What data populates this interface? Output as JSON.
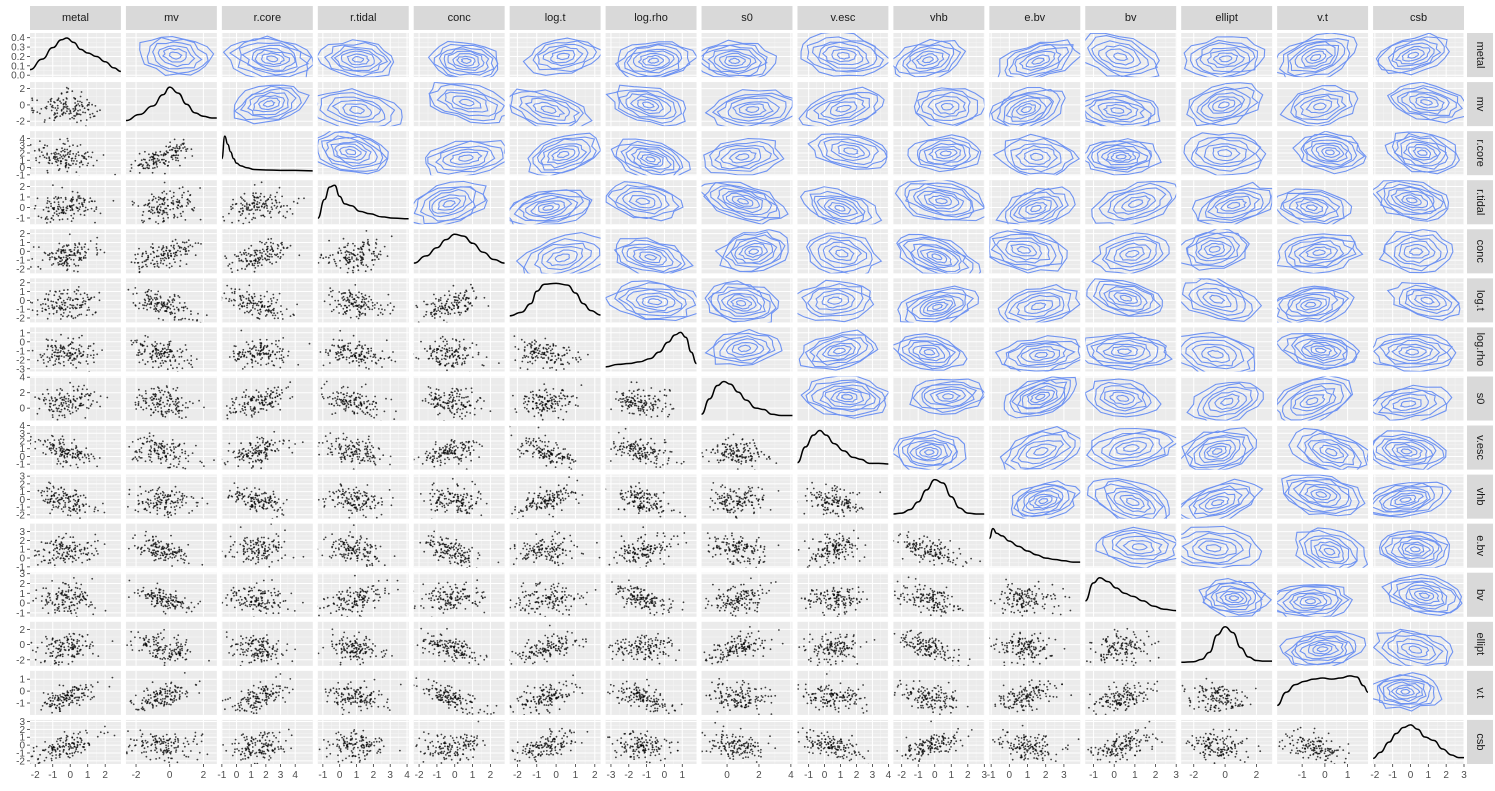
{
  "chart_data": {
    "type": "scatter",
    "variant": "scatterplot-matrix",
    "upper_panels": "2d-density-contour",
    "diagonal_panels": "density-curve",
    "lower_panels": "scatter",
    "grid": true,
    "panel_background": "#ebebeb",
    "strip_background": "#d9d9d9",
    "contour_color": "#6f93f2",
    "point_color": "#000000",
    "density_line_color": "#000000",
    "variables": [
      "metal",
      "mv",
      "r.core",
      "r.tidal",
      "conc",
      "log.t",
      "log.rho",
      "s0",
      "v.esc",
      "vhb",
      "e.bv",
      "bv",
      "ellipt",
      "v.t",
      "csb"
    ],
    "x_axes": [
      {
        "range": [
          -2.3,
          2.9
        ],
        "ticks": [
          "-2",
          "-1",
          "0",
          "1",
          "2"
        ]
      },
      {
        "range": [
          -2.6,
          2.8
        ],
        "ticks": [
          "-2",
          "0",
          "2"
        ]
      },
      {
        "range": [
          -1.0,
          5.2
        ],
        "ticks": [
          "-1",
          "0",
          "1",
          "2",
          "3",
          "4"
        ]
      },
      {
        "range": [
          -1.3,
          4.1
        ],
        "ticks": [
          "-1",
          "0",
          "1",
          "2",
          "3",
          "4"
        ]
      },
      {
        "range": [
          -2.3,
          2.8
        ],
        "ticks": [
          "-2",
          "-1",
          "0",
          "1",
          "2"
        ]
      },
      {
        "range": [
          -2.4,
          2.3
        ],
        "ticks": [
          "-2",
          "-1",
          "0",
          "1",
          "2"
        ]
      },
      {
        "range": [
          -3.3,
          1.8
        ],
        "ticks": [
          "-3",
          "-2",
          "-1",
          "0",
          "1"
        ]
      },
      {
        "range": [
          -1.6,
          4.1
        ],
        "ticks": [
          "0",
          "2",
          "4"
        ]
      },
      {
        "range": [
          -1.7,
          4.0
        ],
        "ticks": [
          "-1",
          "0",
          "1",
          "2",
          "3",
          "4"
        ]
      },
      {
        "range": [
          -2.5,
          3.0
        ],
        "ticks": [
          "-2",
          "-1",
          "0",
          "1",
          "2",
          "3"
        ]
      },
      {
        "range": [
          -1.1,
          3.9
        ],
        "ticks": [
          "-1",
          "0",
          "1",
          "2",
          "3"
        ]
      },
      {
        "range": [
          -1.4,
          3.0
        ],
        "ticks": [
          "-1",
          "0",
          "1",
          "2",
          "3"
        ]
      },
      {
        "range": [
          -2.8,
          3.0
        ],
        "ticks": [
          "-2",
          "0",
          "2"
        ]
      },
      {
        "range": [
          -2.1,
          1.9
        ],
        "ticks": [
          "-1",
          "0",
          "1"
        ]
      },
      {
        "range": [
          -2.1,
          3.0
        ],
        "ticks": [
          "-2",
          "-1",
          "0",
          "1",
          "2",
          "3"
        ]
      }
    ],
    "y_axes": [
      {
        "range": [
          -0.02,
          0.45
        ],
        "ticks": [
          "0.0",
          "0.1",
          "0.2",
          "0.3",
          "0.4"
        ]
      },
      {
        "range": [
          -2.6,
          2.8
        ],
        "ticks": [
          "-2",
          "0",
          "2"
        ]
      },
      {
        "range": [
          -1.05,
          5.0
        ],
        "ticks": [
          "-1",
          "0",
          "1",
          "2",
          "3",
          "4"
        ]
      },
      {
        "range": [
          -1.6,
          2.6
        ],
        "ticks": [
          "-1",
          "0",
          "1",
          "2"
        ]
      },
      {
        "range": [
          -2.5,
          2.5
        ],
        "ticks": [
          "-2",
          "-1",
          "0",
          "1",
          "2"
        ]
      },
      {
        "range": [
          -2.5,
          2.5
        ],
        "ticks": [
          "-2",
          "-1",
          "0",
          "1",
          "2"
        ]
      },
      {
        "range": [
          -3.3,
          1.6
        ],
        "ticks": [
          "-3",
          "-2",
          "-1",
          "0",
          "1"
        ]
      },
      {
        "range": [
          -1.6,
          4.1
        ],
        "ticks": [
          "0",
          "2",
          "4"
        ]
      },
      {
        "range": [
          -1.7,
          4.0
        ],
        "ticks": [
          "-1",
          "0",
          "1",
          "2",
          "3",
          "4"
        ]
      },
      {
        "range": [
          -2.5,
          3.2
        ],
        "ticks": [
          "-2",
          "-1",
          "0",
          "1",
          "2",
          "3"
        ]
      },
      {
        "range": [
          -1.1,
          3.9
        ],
        "ticks": [
          "-1",
          "0",
          "1",
          "2",
          "3"
        ]
      },
      {
        "range": [
          -1.4,
          3.1
        ],
        "ticks": [
          "-1",
          "0",
          "1",
          "2",
          "3"
        ]
      },
      {
        "range": [
          -2.8,
          3.0
        ],
        "ticks": [
          "-2",
          "0",
          "2"
        ]
      },
      {
        "range": [
          -2.0,
          1.7
        ],
        "ticks": [
          "-1",
          "0",
          "1"
        ]
      },
      {
        "range": [
          -2.4,
          3.2
        ],
        "ticks": [
          "-2",
          "-1",
          "0",
          "1",
          "2",
          "3"
        ]
      }
    ],
    "diagonal_densities": [
      {
        "x": [
          -2.3,
          -1.6,
          -1.0,
          -0.5,
          -0.2,
          0.2,
          0.6,
          1.0,
          1.5,
          2.0,
          2.5,
          2.9
        ],
        "y": [
          0.05,
          0.17,
          0.3,
          0.39,
          0.41,
          0.36,
          0.28,
          0.24,
          0.2,
          0.14,
          0.07,
          0.03
        ]
      },
      {
        "x": [
          -2.6,
          -1.8,
          -1.0,
          -0.4,
          0.0,
          0.5,
          1.0,
          1.5,
          2.0,
          2.5,
          2.8
        ],
        "y": [
          0.03,
          0.1,
          0.2,
          0.33,
          0.42,
          0.35,
          0.22,
          0.12,
          0.08,
          0.06,
          0.06
        ]
      },
      {
        "x": [
          -1.0,
          -0.8,
          -0.6,
          -0.4,
          -0.2,
          0.0,
          0.3,
          0.7,
          1.2,
          2.0,
          3.0,
          4.0,
          5.2
        ],
        "y": [
          0.3,
          0.8,
          0.62,
          0.45,
          0.3,
          0.2,
          0.14,
          0.1,
          0.06,
          0.05,
          0.04,
          0.04,
          0.03
        ]
      },
      {
        "x": [
          -1.3,
          -0.9,
          -0.6,
          -0.3,
          0.0,
          0.3,
          0.7,
          1.2,
          1.8,
          2.5,
          3.2,
          4.1
        ],
        "y": [
          0.05,
          0.35,
          0.55,
          0.58,
          0.4,
          0.28,
          0.25,
          0.16,
          0.12,
          0.07,
          0.05,
          0.04
        ]
      },
      {
        "x": [
          -2.3,
          -1.6,
          -1.0,
          -0.5,
          0.0,
          0.5,
          1.0,
          1.6,
          2.2,
          2.8
        ],
        "y": [
          0.08,
          0.16,
          0.25,
          0.34,
          0.4,
          0.38,
          0.3,
          0.2,
          0.12,
          0.08
        ]
      },
      {
        "x": [
          -2.4,
          -1.8,
          -1.3,
          -1.0,
          -0.6,
          0.0,
          0.6,
          1.0,
          1.4,
          1.8,
          2.3
        ],
        "y": [
          0.04,
          0.08,
          0.18,
          0.32,
          0.4,
          0.41,
          0.39,
          0.3,
          0.18,
          0.1,
          0.05
        ]
      },
      {
        "x": [
          -3.3,
          -2.6,
          -2.0,
          -1.4,
          -0.8,
          -0.3,
          0.2,
          0.6,
          0.9,
          1.2,
          1.5,
          1.8
        ],
        "y": [
          0.02,
          0.05,
          0.06,
          0.08,
          0.12,
          0.2,
          0.32,
          0.41,
          0.44,
          0.38,
          0.2,
          0.06
        ]
      },
      {
        "x": [
          -1.6,
          -1.1,
          -0.6,
          -0.2,
          0.2,
          0.7,
          1.2,
          1.8,
          2.3,
          2.8,
          3.4,
          4.1
        ],
        "y": [
          0.05,
          0.28,
          0.48,
          0.54,
          0.5,
          0.38,
          0.26,
          0.14,
          0.12,
          0.05,
          0.03,
          0.03
        ]
      },
      {
        "x": [
          -1.7,
          -1.2,
          -0.7,
          -0.3,
          0.1,
          0.6,
          1.2,
          1.8,
          2.3,
          2.8,
          3.4,
          4.0
        ],
        "y": [
          0.06,
          0.3,
          0.48,
          0.55,
          0.48,
          0.35,
          0.24,
          0.14,
          0.11,
          0.05,
          0.05,
          0.04
        ]
      },
      {
        "x": [
          -2.5,
          -2.0,
          -1.5,
          -1.0,
          -0.5,
          0.0,
          0.5,
          1.0,
          1.5,
          2.0,
          2.5,
          3.0
        ],
        "y": [
          0.02,
          0.03,
          0.07,
          0.16,
          0.3,
          0.42,
          0.38,
          0.22,
          0.09,
          0.03,
          0.02,
          0.02
        ]
      },
      {
        "x": [
          -1.1,
          -0.9,
          -0.7,
          -0.4,
          0.0,
          0.5,
          1.0,
          1.5,
          2.0,
          2.5,
          3.0,
          3.5,
          3.9
        ],
        "y": [
          0.4,
          0.55,
          0.48,
          0.44,
          0.36,
          0.28,
          0.21,
          0.15,
          0.1,
          0.08,
          0.06,
          0.04,
          0.04
        ]
      },
      {
        "x": [
          -1.4,
          -1.0,
          -0.7,
          -0.3,
          0.1,
          0.5,
          0.9,
          1.4,
          1.9,
          2.4,
          3.0
        ],
        "y": [
          0.2,
          0.48,
          0.56,
          0.5,
          0.4,
          0.32,
          0.27,
          0.2,
          0.12,
          0.07,
          0.05
        ]
      },
      {
        "x": [
          -2.8,
          -2.0,
          -1.5,
          -1.0,
          -0.5,
          0.0,
          0.5,
          1.0,
          1.5,
          2.0,
          2.5,
          3.0
        ],
        "y": [
          0.01,
          0.02,
          0.06,
          0.18,
          0.48,
          0.62,
          0.52,
          0.26,
          0.1,
          0.04,
          0.03,
          0.03
        ]
      },
      {
        "x": [
          -2.1,
          -1.7,
          -1.3,
          -0.9,
          -0.5,
          -0.1,
          0.3,
          0.7,
          1.1,
          1.4,
          1.7,
          1.9
        ],
        "y": [
          0.06,
          0.18,
          0.25,
          0.28,
          0.3,
          0.31,
          0.3,
          0.31,
          0.33,
          0.32,
          0.24,
          0.18
        ]
      },
      {
        "x": [
          -2.1,
          -1.7,
          -1.2,
          -0.8,
          -0.4,
          0.0,
          0.4,
          0.8,
          1.3,
          1.8,
          2.3,
          2.7,
          3.0
        ],
        "y": [
          0.03,
          0.1,
          0.22,
          0.32,
          0.39,
          0.42,
          0.37,
          0.28,
          0.24,
          0.14,
          0.07,
          0.04,
          0.04
        ]
      }
    ]
  }
}
